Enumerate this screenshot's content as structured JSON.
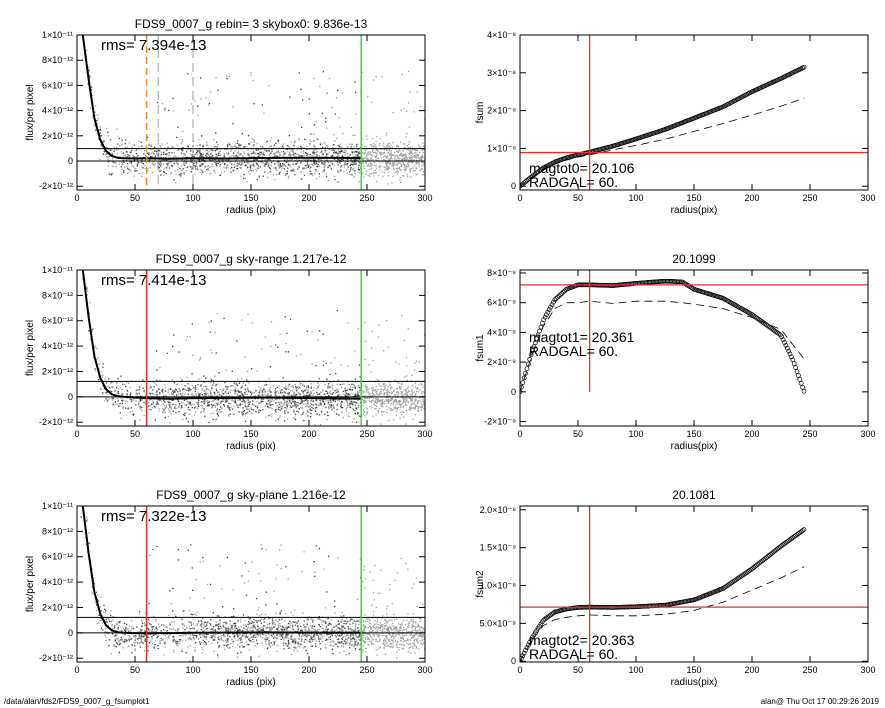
{
  "colors": {
    "frame": "#000000",
    "scatter_light": "#a0a0a0",
    "scatter_dark": "#404040",
    "red": "#e03030",
    "green": "#33dd33",
    "orange": "#e89030",
    "grey": "#888888"
  },
  "footer": {
    "left": "/data/alan/fds2/FDS9_0007_g_fsumplot1",
    "right": "alan@  Thu Oct 17 00:29:26 2019"
  },
  "chart_data": [
    {
      "id": "p1",
      "type": "scatter",
      "title": "FDS9_0007_g rebin= 3    skybox0:  9.836e-13",
      "xlabel": "radius (pix)",
      "ylabel": "flux/per pixel",
      "rms_text": "rms= 7.394e-13",
      "xlim": [
        0,
        300
      ],
      "ylim": [
        -2.3e-12,
        1e-11
      ],
      "xticks": [
        0,
        50,
        100,
        150,
        200,
        250,
        300
      ],
      "yticks": [
        {
          "v": 1e-11,
          "t": "1×10⁻¹¹"
        },
        {
          "v": 8e-12,
          "t": "8×10⁻¹²"
        },
        {
          "v": 6e-12,
          "t": "6×10⁻¹²"
        },
        {
          "v": 4e-12,
          "t": "4×10⁻¹²"
        },
        {
          "v": 2e-12,
          "t": "2×10⁻¹²"
        },
        {
          "v": 0,
          "t": "0"
        },
        {
          "v": -2e-12,
          "t": "-2×10⁻¹²"
        }
      ],
      "hlines": [
        {
          "y": 0,
          "color": "black"
        },
        {
          "y": 9.836e-13,
          "color": "black"
        }
      ],
      "vlines": [
        {
          "x": 245,
          "color": "green"
        },
        {
          "x": 60,
          "color": "orange",
          "dash": true
        },
        {
          "x": 70,
          "color": "grey",
          "dash": true
        },
        {
          "x": 100,
          "color": "grey",
          "dash": true
        }
      ],
      "profile_x": [
        5,
        10,
        15,
        20,
        25,
        30,
        35,
        40,
        50,
        60,
        80,
        100,
        130,
        160,
        200,
        245
      ],
      "profile_y": [
        1e-11,
        6.5e-12,
        3.4e-12,
        1.7e-12,
        8e-13,
        4e-13,
        2.6e-13,
        2.2e-13,
        2e-13,
        2.2e-13,
        1.8e-13,
        2.2e-13,
        2e-13,
        2.4e-13,
        2.6e-13,
        2.4e-13
      ],
      "scatter_sigma": 7.394e-13,
      "sky_offset": 2.2e-13
    },
    {
      "id": "p2",
      "type": "line",
      "title": "",
      "xlabel": "radius(pix)",
      "ylabel": "fsum",
      "xlim": [
        0,
        300
      ],
      "ylim": [
        -1e-09,
        4e-08
      ],
      "xticks": [
        0,
        50,
        100,
        150,
        200,
        250,
        300
      ],
      "yticks": [
        {
          "v": 4e-08,
          "t": "4×10⁻⁸"
        },
        {
          "v": 3e-08,
          "t": "3×10⁻⁸"
        },
        {
          "v": 2e-08,
          "t": "2×10⁻⁸"
        },
        {
          "v": 1e-08,
          "t": "1×10⁻⁸"
        },
        {
          "v": 0,
          "t": "0"
        }
      ],
      "vline_x": 60,
      "hline_y": 8.9e-09,
      "magtot_text": "magtot0=  20.106",
      "radgal_text": "RADGAL=    60.",
      "x": [
        0,
        10,
        20,
        30,
        40,
        50,
        60,
        80,
        100,
        125,
        150,
        175,
        200,
        225,
        245
      ],
      "y": [
        0,
        2.5e-09,
        4.8e-09,
        6.4e-09,
        7.5e-09,
        8.3e-09,
        9e-09,
        1.06e-08,
        1.25e-08,
        1.5e-08,
        1.8e-08,
        2.1e-08,
        2.5e-08,
        2.85e-08,
        3.15e-08
      ],
      "dashed_x": [
        0,
        10,
        20,
        30,
        40,
        50,
        60,
        80,
        100,
        125,
        150,
        175,
        200,
        225,
        245
      ],
      "dashed_y": [
        0,
        2.3e-09,
        4.5e-09,
        5.9e-09,
        6.9e-09,
        7.7e-09,
        8.3e-09,
        9.6e-09,
        1.08e-08,
        1.24e-08,
        1.45e-08,
        1.66e-08,
        1.88e-08,
        2.12e-08,
        2.33e-08
      ]
    },
    {
      "id": "p3",
      "type": "scatter",
      "title": "FDS9_0007_g sky-range  1.217e-12",
      "xlabel": "radius (pix)",
      "ylabel": "flux/per pixel",
      "rms_text": "rms= 7.414e-13",
      "xlim": [
        0,
        300
      ],
      "ylim": [
        -2.3e-12,
        1e-11
      ],
      "xticks": [
        0,
        50,
        100,
        150,
        200,
        250,
        300
      ],
      "yticks": [
        {
          "v": 1e-11,
          "t": "1×10⁻¹¹"
        },
        {
          "v": 8e-12,
          "t": "8×10⁻¹²"
        },
        {
          "v": 6e-12,
          "t": "6×10⁻¹²"
        },
        {
          "v": 4e-12,
          "t": "4×10⁻¹²"
        },
        {
          "v": 2e-12,
          "t": "2×10⁻¹²"
        },
        {
          "v": 0,
          "t": "0"
        },
        {
          "v": -2e-12,
          "t": "-2×10⁻¹²"
        }
      ],
      "hlines": [
        {
          "y": 0,
          "color": "black"
        },
        {
          "y": 1.217e-12,
          "color": "black"
        }
      ],
      "vlines": [
        {
          "x": 245,
          "color": "green"
        },
        {
          "x": 60,
          "color": "red"
        }
      ],
      "profile_x": [
        5,
        10,
        15,
        20,
        25,
        30,
        35,
        40,
        50,
        60,
        80,
        100,
        130,
        160,
        200,
        245
      ],
      "profile_y": [
        1e-11,
        6.3e-12,
        3.2e-12,
        1.5e-12,
        6e-13,
        2e-13,
        5e-14,
        0,
        -5e-14,
        -1e-13,
        -1.5e-13,
        -1e-13,
        -1e-13,
        -5e-14,
        -1e-13,
        -1.5e-13
      ],
      "scatter_sigma": 7.414e-13,
      "sky_offset": 0
    },
    {
      "id": "p4",
      "type": "line",
      "title": "20.1099",
      "xlabel": "radius(pix)",
      "ylabel": "fsum1",
      "xlim": [
        0,
        300
      ],
      "ylim": [
        -2.3e-09,
        8.2e-09
      ],
      "xticks": [
        0,
        50,
        100,
        150,
        200,
        250,
        300
      ],
      "yticks": [
        {
          "v": 8e-09,
          "t": "8×10⁻⁹"
        },
        {
          "v": 6e-09,
          "t": "6×10⁻⁹"
        },
        {
          "v": 4e-09,
          "t": "4×10⁻⁹"
        },
        {
          "v": 2e-09,
          "t": "2×10⁻⁹"
        },
        {
          "v": 0,
          "t": "0"
        },
        {
          "v": -2e-09,
          "t": "-2×10⁻⁹"
        }
      ],
      "vline_x": 60,
      "hline_y": 7.2e-09,
      "magtot_text": "magtot1=  20.361",
      "radgal_text": "RADGAL=    60.",
      "x": [
        0,
        10,
        20,
        30,
        40,
        50,
        60,
        80,
        100,
        125,
        140,
        150,
        175,
        200,
        225,
        235,
        245
      ],
      "y": [
        0,
        2.6e-09,
        4.8e-09,
        6.2e-09,
        6.9e-09,
        7.2e-09,
        7.2e-09,
        7.15e-09,
        7.3e-09,
        7.45e-09,
        7.4e-09,
        6.9e-09,
        6.3e-09,
        5.2e-09,
        3.8e-09,
        2.2e-09,
        0
      ],
      "dashed_x": [
        0,
        10,
        20,
        30,
        40,
        50,
        60,
        80,
        100,
        125,
        140,
        150,
        175,
        200,
        225,
        245
      ],
      "dashed_y": [
        0,
        2.4e-09,
        4.4e-09,
        5.6e-09,
        6e-09,
        6e-09,
        6.1e-09,
        5.95e-09,
        6.1e-09,
        6.1e-09,
        6e-09,
        5.9e-09,
        5.6e-09,
        5e-09,
        4.2e-09,
        2.2e-09
      ]
    },
    {
      "id": "p5",
      "type": "scatter",
      "title": "FDS9_0007_g sky-plane  1.216e-12",
      "xlabel": "radius (pix)",
      "ylabel": "flux/per pixel",
      "rms_text": "rms= 7.322e-13",
      "xlim": [
        0,
        300
      ],
      "ylim": [
        -2.3e-12,
        1e-11
      ],
      "xticks": [
        0,
        50,
        100,
        150,
        200,
        250,
        300
      ],
      "yticks": [
        {
          "v": 1e-11,
          "t": "1×10⁻¹¹"
        },
        {
          "v": 8e-12,
          "t": "8×10⁻¹²"
        },
        {
          "v": 6e-12,
          "t": "6×10⁻¹²"
        },
        {
          "v": 4e-12,
          "t": "4×10⁻¹²"
        },
        {
          "v": 2e-12,
          "t": "2×10⁻¹²"
        },
        {
          "v": 0,
          "t": "0"
        },
        {
          "v": -2e-12,
          "t": "-2×10⁻¹²"
        }
      ],
      "hlines": [
        {
          "y": 0,
          "color": "black"
        },
        {
          "y": 1.216e-12,
          "color": "black"
        }
      ],
      "vlines": [
        {
          "x": 245,
          "color": "green"
        },
        {
          "x": 60,
          "color": "red"
        }
      ],
      "profile_x": [
        5,
        10,
        15,
        20,
        25,
        30,
        35,
        40,
        50,
        60,
        80,
        100,
        130,
        160,
        200,
        245
      ],
      "profile_y": [
        1e-11,
        6.3e-12,
        3.2e-12,
        1.5e-12,
        6e-13,
        2e-13,
        5e-14,
        0,
        -2e-14,
        -3e-14,
        -2e-14,
        0,
        2e-14,
        3e-14,
        2e-14,
        0
      ],
      "scatter_sigma": 7.322e-13,
      "sky_offset": 0
    },
    {
      "id": "p6",
      "type": "line",
      "title": "20.1081",
      "xlabel": "radius(pix)",
      "ylabel": "fsum2",
      "xlim": [
        0,
        300
      ],
      "ylim": [
        -1e-10,
        2.05e-08
      ],
      "xticks": [
        0,
        50,
        100,
        150,
        200,
        250,
        300
      ],
      "yticks": [
        {
          "v": 2e-08,
          "t": "2.0×10⁻⁸"
        },
        {
          "v": 1.5e-08,
          "t": "1.5×10⁻⁸"
        },
        {
          "v": 1e-08,
          "t": "1.0×10⁻⁸"
        },
        {
          "v": 5e-09,
          "t": "5.0×10⁻⁹"
        },
        {
          "v": 0,
          "t": "0"
        }
      ],
      "vline_x": 60,
      "hline_y": 7.15e-09,
      "magtot_text": "magtot2=  20.363",
      "radgal_text": "RADGAL=    60.",
      "x": [
        0,
        10,
        20,
        30,
        40,
        50,
        60,
        80,
        100,
        125,
        150,
        175,
        200,
        225,
        245
      ],
      "y": [
        0,
        3e-09,
        5.4e-09,
        6.5e-09,
        6.9e-09,
        7.1e-09,
        7.15e-09,
        7.1e-09,
        7.2e-09,
        7.4e-09,
        8.1e-09,
        9.6e-09,
        1.22e-08,
        1.52e-08,
        1.74e-08
      ],
      "dashed_x": [
        0,
        10,
        20,
        30,
        40,
        50,
        60,
        80,
        100,
        125,
        150,
        175,
        200,
        225,
        245
      ],
      "dashed_y": [
        0,
        2.7e-09,
        4.7e-09,
        5.5e-09,
        5.8e-09,
        6e-09,
        6.1e-09,
        6e-09,
        6e-09,
        6.2e-09,
        6.7e-09,
        7.8e-09,
        9.4e-09,
        1.1e-08,
        1.25e-08
      ]
    }
  ]
}
